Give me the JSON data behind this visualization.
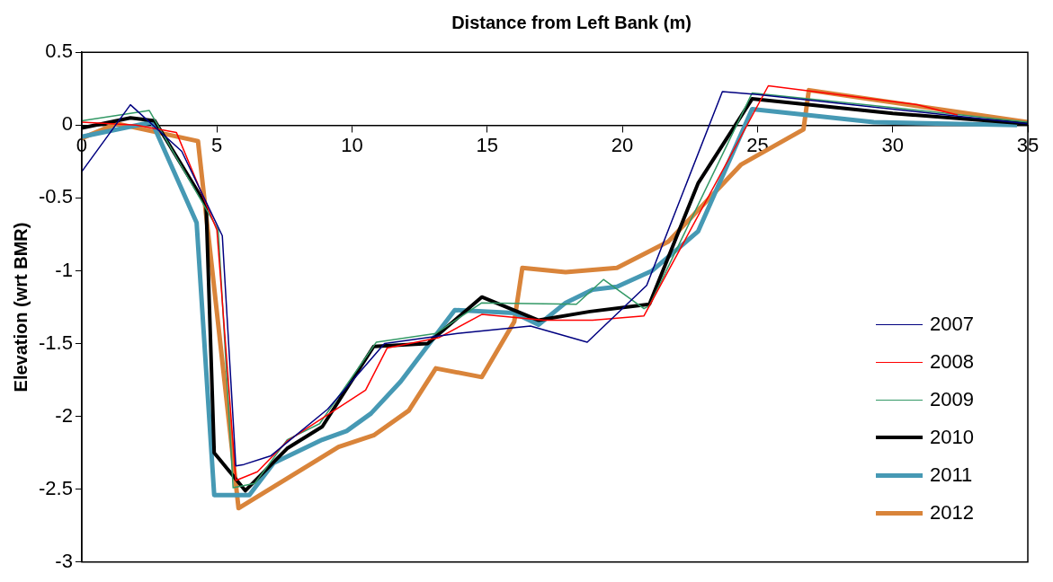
{
  "chart_data": {
    "type": "line",
    "xlabel": "Distance from Left Bank (m)",
    "ylabel": "Elevation (wrt BMR)",
    "xlim": [
      0,
      35
    ],
    "xticks": [
      0,
      5,
      10,
      15,
      20,
      25,
      30,
      35
    ],
    "ylim": [
      -3,
      0.5
    ],
    "yticks": [
      -3,
      -2.5,
      -2,
      -1.5,
      -1,
      -0.5,
      0,
      0.5
    ],
    "grid": false,
    "legend": "bottom right",
    "marker": "none",
    "series": [
      {
        "name": "2007",
        "color": "#000080",
        "x": [
          0,
          1.8,
          3.7,
          5.2,
          5.7,
          6.0,
          7.0,
          9.1,
          11.2,
          13.9,
          16.6,
          18.7,
          20.9,
          23.7,
          25,
          35
        ],
        "values": [
          -0.32,
          0.14,
          -0.18,
          -0.76,
          -2.34,
          -2.33,
          -2.27,
          -1.95,
          -1.5,
          -1.43,
          -1.38,
          -1.49,
          -1.1,
          0.23,
          0.21,
          0.01
        ]
      },
      {
        "name": "2008",
        "color": "#ff0000",
        "x": [
          0,
          2,
          3.5,
          5,
          5.7,
          6.5,
          7.6,
          10.5,
          11.3,
          13.2,
          14.8,
          17.1,
          18.9,
          20.8,
          25.4,
          30.9,
          32.4
        ],
        "values": [
          0.02,
          0,
          -0.05,
          -0.72,
          -2.44,
          -2.38,
          -2.17,
          -1.82,
          -1.53,
          -1.46,
          -1.3,
          -1.34,
          -1.34,
          -1.31,
          0.27,
          0.14,
          0.07
        ]
      },
      {
        "name": "2009",
        "color": "#339966",
        "x": [
          0,
          2.5,
          5.05,
          5.6,
          6.4,
          7.6,
          8.8,
          10.9,
          13.1,
          14.8,
          18.3,
          19.3,
          20.8,
          21,
          24.8,
          30,
          35
        ],
        "values": [
          0.03,
          0.1,
          -0.72,
          -2.49,
          -2.46,
          -2.16,
          -2.05,
          -1.49,
          -1.43,
          -1.22,
          -1.23,
          -1.06,
          -1.26,
          -1.24,
          0.22,
          0.12,
          0.02
        ]
      },
      {
        "name": "2010",
        "color": "#000000",
        "x": [
          0,
          1.8,
          2.7,
          4.6,
          4.9,
          6.05,
          7.6,
          8.9,
          10.8,
          12.8,
          14.8,
          16.9,
          18.8,
          21,
          22.8,
          24.8,
          30,
          35
        ],
        "values": [
          -0.02,
          0.05,
          0.03,
          -0.55,
          -2.25,
          -2.51,
          -2.22,
          -2.07,
          -1.52,
          -1.5,
          -1.18,
          -1.34,
          -1.28,
          -1.23,
          -0.4,
          0.18,
          0.08,
          0.01
        ]
      },
      {
        "name": "2011",
        "color": "#4699b4",
        "x": [
          0,
          2.6,
          4.25,
          4.9,
          6.2,
          7.1,
          8.9,
          9.8,
          10.7,
          11.8,
          13.8,
          16,
          16.9,
          17.9,
          18.9,
          19.8,
          21.1,
          22.8,
          24.8,
          29.3,
          34.6
        ],
        "values": [
          -0.08,
          0.02,
          -0.67,
          -2.54,
          -2.54,
          -2.32,
          -2.16,
          -2.1,
          -1.98,
          -1.76,
          -1.27,
          -1.29,
          -1.37,
          -1.22,
          -1.13,
          -1.11,
          -1,
          -0.73,
          0.11,
          0.02,
          0
        ]
      },
      {
        "name": "2012",
        "color": "#d9843a",
        "x": [
          0,
          1.3,
          4.3,
          5.8,
          9.5,
          10.8,
          12.1,
          13.1,
          14.8,
          16,
          16.3,
          17.9,
          19.8,
          21.7,
          24.4,
          26.7,
          26.9,
          35
        ],
        "values": [
          -0.09,
          0.01,
          -0.11,
          -2.63,
          -2.21,
          -2.13,
          -1.96,
          -1.67,
          -1.73,
          -1.35,
          -0.98,
          -1.01,
          -0.98,
          -0.8,
          -0.27,
          -0.03,
          0.24,
          0.02
        ]
      }
    ]
  }
}
